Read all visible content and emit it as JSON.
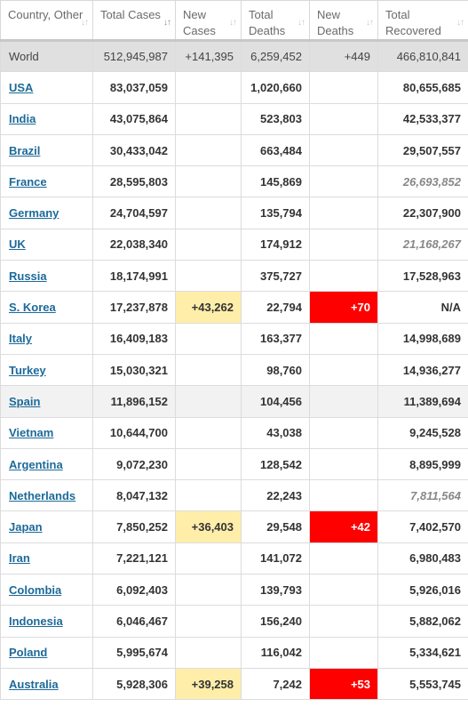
{
  "headers": [
    {
      "label": "Country, Other"
    },
    {
      "label": "Total Cases"
    },
    {
      "label": "New Cases"
    },
    {
      "label": "Total Deaths"
    },
    {
      "label": "New Deaths"
    },
    {
      "label": "Total Recovered"
    }
  ],
  "colors": {
    "new_cases_highlight": "#ffeeaa",
    "new_deaths_highlight": "#ff0000",
    "link": "#1c6a99",
    "world_row": "#e0e0e0"
  },
  "world": {
    "country": "World",
    "total_cases": "512,945,987",
    "new_cases": "+141,395",
    "total_deaths": "6,259,452",
    "new_deaths": "+449",
    "total_recovered": "466,810,841"
  },
  "rows": [
    {
      "country": "USA",
      "total_cases": "83,037,059",
      "new_cases": "",
      "total_deaths": "1,020,660",
      "new_deaths": "",
      "total_recovered": "80,655,685",
      "recovered_est": false
    },
    {
      "country": "India",
      "total_cases": "43,075,864",
      "new_cases": "",
      "total_deaths": "523,803",
      "new_deaths": "",
      "total_recovered": "42,533,377",
      "recovered_est": false
    },
    {
      "country": "Brazil",
      "total_cases": "30,433,042",
      "new_cases": "",
      "total_deaths": "663,484",
      "new_deaths": "",
      "total_recovered": "29,507,557",
      "recovered_est": false
    },
    {
      "country": "France",
      "total_cases": "28,595,803",
      "new_cases": "",
      "total_deaths": "145,869",
      "new_deaths": "",
      "total_recovered": "26,693,852",
      "recovered_est": true
    },
    {
      "country": "Germany",
      "total_cases": "24,704,597",
      "new_cases": "",
      "total_deaths": "135,794",
      "new_deaths": "",
      "total_recovered": "22,307,900",
      "recovered_est": false
    },
    {
      "country": "UK",
      "total_cases": "22,038,340",
      "new_cases": "",
      "total_deaths": "174,912",
      "new_deaths": "",
      "total_recovered": "21,168,267",
      "recovered_est": true
    },
    {
      "country": "Russia",
      "total_cases": "18,174,991",
      "new_cases": "",
      "total_deaths": "375,727",
      "new_deaths": "",
      "total_recovered": "17,528,963",
      "recovered_est": false
    },
    {
      "country": "S. Korea",
      "total_cases": "17,237,878",
      "new_cases": "+43,262",
      "total_deaths": "22,794",
      "new_deaths": "+70",
      "total_recovered": "N/A",
      "recovered_est": false
    },
    {
      "country": "Italy",
      "total_cases": "16,409,183",
      "new_cases": "",
      "total_deaths": "163,377",
      "new_deaths": "",
      "total_recovered": "14,998,689",
      "recovered_est": false
    },
    {
      "country": "Turkey",
      "total_cases": "15,030,321",
      "new_cases": "",
      "total_deaths": "98,760",
      "new_deaths": "",
      "total_recovered": "14,936,277",
      "recovered_est": false
    },
    {
      "country": "Spain",
      "total_cases": "11,896,152",
      "new_cases": "",
      "total_deaths": "104,456",
      "new_deaths": "",
      "total_recovered": "11,389,694",
      "recovered_est": false
    },
    {
      "country": "Vietnam",
      "total_cases": "10,644,700",
      "new_cases": "",
      "total_deaths": "43,038",
      "new_deaths": "",
      "total_recovered": "9,245,528",
      "recovered_est": false
    },
    {
      "country": "Argentina",
      "total_cases": "9,072,230",
      "new_cases": "",
      "total_deaths": "128,542",
      "new_deaths": "",
      "total_recovered": "8,895,999",
      "recovered_est": false
    },
    {
      "country": "Netherlands",
      "total_cases": "8,047,132",
      "new_cases": "",
      "total_deaths": "22,243",
      "new_deaths": "",
      "total_recovered": "7,811,564",
      "recovered_est": true
    },
    {
      "country": "Japan",
      "total_cases": "7,850,252",
      "new_cases": "+36,403",
      "total_deaths": "29,548",
      "new_deaths": "+42",
      "total_recovered": "7,402,570",
      "recovered_est": false
    },
    {
      "country": "Iran",
      "total_cases": "7,221,121",
      "new_cases": "",
      "total_deaths": "141,072",
      "new_deaths": "",
      "total_recovered": "6,980,483",
      "recovered_est": false
    },
    {
      "country": "Colombia",
      "total_cases": "6,092,403",
      "new_cases": "",
      "total_deaths": "139,793",
      "new_deaths": "",
      "total_recovered": "5,926,016",
      "recovered_est": false
    },
    {
      "country": "Indonesia",
      "total_cases": "6,046,467",
      "new_cases": "",
      "total_deaths": "156,240",
      "new_deaths": "",
      "total_recovered": "5,882,062",
      "recovered_est": false
    },
    {
      "country": "Poland",
      "total_cases": "5,995,674",
      "new_cases": "",
      "total_deaths": "116,042",
      "new_deaths": "",
      "total_recovered": "5,334,621",
      "recovered_est": false
    },
    {
      "country": "Australia",
      "total_cases": "5,928,306",
      "new_cases": "+39,258",
      "total_deaths": "7,242",
      "new_deaths": "+53",
      "total_recovered": "5,553,745",
      "recovered_est": false
    }
  ]
}
